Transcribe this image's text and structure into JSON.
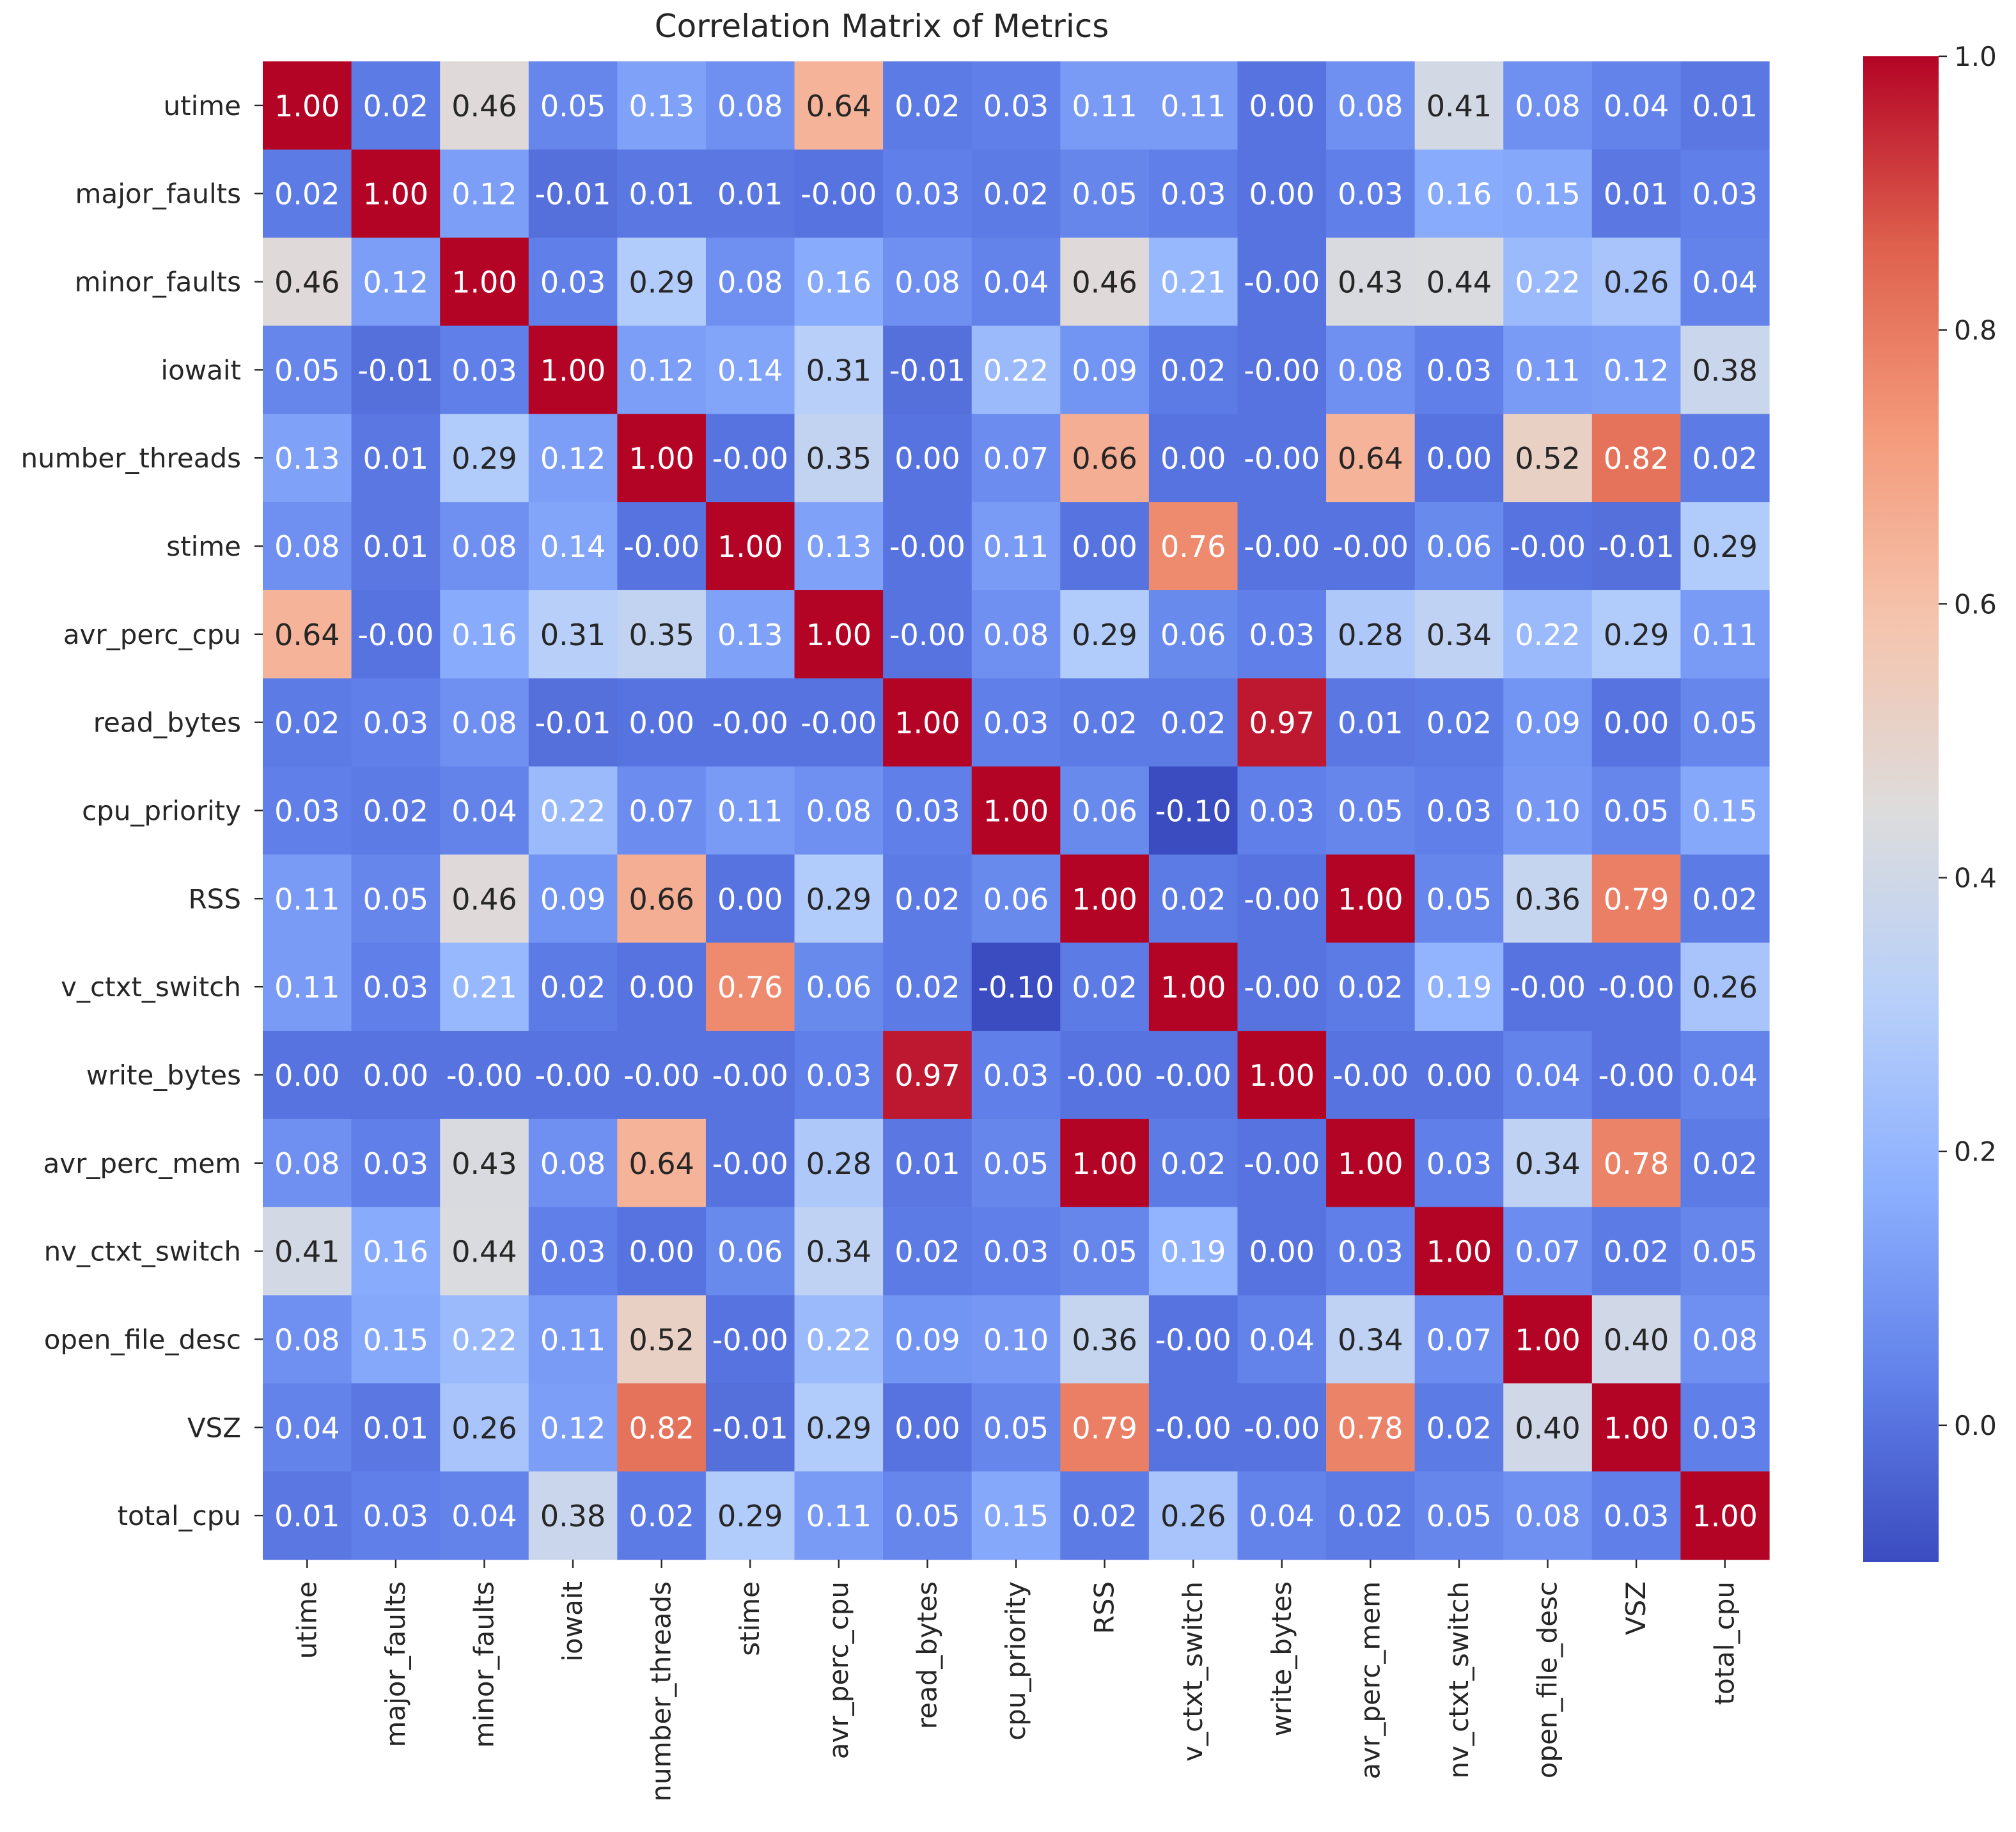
{
  "chart_data": {
    "type": "heatmap",
    "title": "Correlation Matrix of Metrics",
    "xlabel": "",
    "ylabel": "",
    "labels": [
      "utime",
      "major_faults",
      "minor_faults",
      "iowait",
      "number_threads",
      "stime",
      "avr_perc_cpu",
      "read_bytes",
      "cpu_priority",
      "RSS",
      "v_ctxt_switch",
      "write_bytes",
      "avr_perc_mem",
      "nv_ctxt_switch",
      "open_file_desc",
      "VSZ",
      "total_cpu"
    ],
    "value_labels": [
      [
        "1.00",
        "0.02",
        "0.46",
        "0.05",
        "0.13",
        "0.08",
        "0.64",
        "0.02",
        "0.03",
        "0.11",
        "0.11",
        "0.00",
        "0.08",
        "0.41",
        "0.08",
        "0.04",
        "0.01"
      ],
      [
        "0.02",
        "1.00",
        "0.12",
        "-0.01",
        "0.01",
        "0.01",
        "-0.00",
        "0.03",
        "0.02",
        "0.05",
        "0.03",
        "0.00",
        "0.03",
        "0.16",
        "0.15",
        "0.01",
        "0.03"
      ],
      [
        "0.46",
        "0.12",
        "1.00",
        "0.03",
        "0.29",
        "0.08",
        "0.16",
        "0.08",
        "0.04",
        "0.46",
        "0.21",
        "-0.00",
        "0.43",
        "0.44",
        "0.22",
        "0.26",
        "0.04"
      ],
      [
        "0.05",
        "-0.01",
        "0.03",
        "1.00",
        "0.12",
        "0.14",
        "0.31",
        "-0.01",
        "0.22",
        "0.09",
        "0.02",
        "-0.00",
        "0.08",
        "0.03",
        "0.11",
        "0.12",
        "0.38"
      ],
      [
        "0.13",
        "0.01",
        "0.29",
        "0.12",
        "1.00",
        "-0.00",
        "0.35",
        "0.00",
        "0.07",
        "0.66",
        "0.00",
        "-0.00",
        "0.64",
        "0.00",
        "0.52",
        "0.82",
        "0.02"
      ],
      [
        "0.08",
        "0.01",
        "0.08",
        "0.14",
        "-0.00",
        "1.00",
        "0.13",
        "-0.00",
        "0.11",
        "0.00",
        "0.76",
        "-0.00",
        "-0.00",
        "0.06",
        "-0.00",
        "-0.01",
        "0.29"
      ],
      [
        "0.64",
        "-0.00",
        "0.16",
        "0.31",
        "0.35",
        "0.13",
        "1.00",
        "-0.00",
        "0.08",
        "0.29",
        "0.06",
        "0.03",
        "0.28",
        "0.34",
        "0.22",
        "0.29",
        "0.11"
      ],
      [
        "0.02",
        "0.03",
        "0.08",
        "-0.01",
        "0.00",
        "-0.00",
        "-0.00",
        "1.00",
        "0.03",
        "0.02",
        "0.02",
        "0.97",
        "0.01",
        "0.02",
        "0.09",
        "0.00",
        "0.05"
      ],
      [
        "0.03",
        "0.02",
        "0.04",
        "0.22",
        "0.07",
        "0.11",
        "0.08",
        "0.03",
        "1.00",
        "0.06",
        "-0.10",
        "0.03",
        "0.05",
        "0.03",
        "0.10",
        "0.05",
        "0.15"
      ],
      [
        "0.11",
        "0.05",
        "0.46",
        "0.09",
        "0.66",
        "0.00",
        "0.29",
        "0.02",
        "0.06",
        "1.00",
        "0.02",
        "-0.00",
        "1.00",
        "0.05",
        "0.36",
        "0.79",
        "0.02"
      ],
      [
        "0.11",
        "0.03",
        "0.21",
        "0.02",
        "0.00",
        "0.76",
        "0.06",
        "0.02",
        "-0.10",
        "0.02",
        "1.00",
        "-0.00",
        "0.02",
        "0.19",
        "-0.00",
        "-0.00",
        "0.26"
      ],
      [
        "0.00",
        "0.00",
        "-0.00",
        "-0.00",
        "-0.00",
        "-0.00",
        "0.03",
        "0.97",
        "0.03",
        "-0.00",
        "-0.00",
        "1.00",
        "-0.00",
        "0.00",
        "0.04",
        "-0.00",
        "0.04"
      ],
      [
        "0.08",
        "0.03",
        "0.43",
        "0.08",
        "0.64",
        "-0.00",
        "0.28",
        "0.01",
        "0.05",
        "1.00",
        "0.02",
        "-0.00",
        "1.00",
        "0.03",
        "0.34",
        "0.78",
        "0.02"
      ],
      [
        "0.41",
        "0.16",
        "0.44",
        "0.03",
        "0.00",
        "0.06",
        "0.34",
        "0.02",
        "0.03",
        "0.05",
        "0.19",
        "0.00",
        "0.03",
        "1.00",
        "0.07",
        "0.02",
        "0.05"
      ],
      [
        "0.08",
        "0.15",
        "0.22",
        "0.11",
        "0.52",
        "-0.00",
        "0.22",
        "0.09",
        "0.10",
        "0.36",
        "-0.00",
        "0.04",
        "0.34",
        "0.07",
        "1.00",
        "0.40",
        "0.08"
      ],
      [
        "0.04",
        "0.01",
        "0.26",
        "0.12",
        "0.82",
        "-0.01",
        "0.29",
        "0.00",
        "0.05",
        "0.79",
        "-0.00",
        "-0.00",
        "0.78",
        "0.02",
        "0.40",
        "1.00",
        "0.03"
      ],
      [
        "0.01",
        "0.03",
        "0.04",
        "0.38",
        "0.02",
        "0.29",
        "0.11",
        "0.05",
        "0.15",
        "0.02",
        "0.26",
        "0.04",
        "0.02",
        "0.05",
        "0.08",
        "0.03",
        "1.00"
      ]
    ],
    "colormap": "coolwarm",
    "value_range": [
      -0.1,
      1.0
    ],
    "colorbar": {
      "ticks": [
        "0.0",
        "0.2",
        "0.4",
        "0.6",
        "0.8",
        "1.0"
      ],
      "placement": "right"
    },
    "colors": {
      "low": "#3b4cc0",
      "mid": "#dddcdc",
      "high": "#b40426",
      "text_dark": "#262626",
      "text_light": "#ffffff"
    }
  }
}
